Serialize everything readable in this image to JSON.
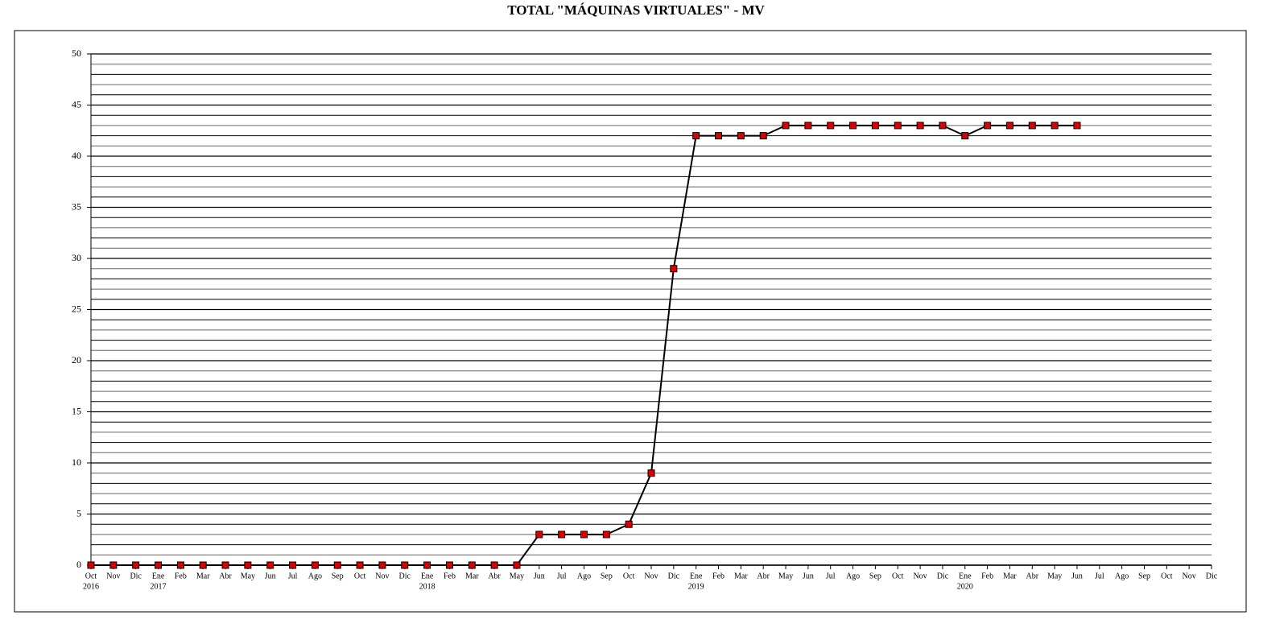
{
  "chart_data": {
    "type": "line",
    "title": "TOTAL \"MÁQUINAS VIRTUALES\" - MV",
    "categories": [
      "Oct",
      "Nov",
      "Dic",
      "Ene",
      "Feb",
      "Mar",
      "Abr",
      "May",
      "Jun",
      "Jul",
      "Ago",
      "Sep",
      "Oct",
      "Nov",
      "Dic",
      "Ene",
      "Feb",
      "Mar",
      "Abr",
      "May",
      "Jun",
      "Jul",
      "Ago",
      "Sep",
      "Oct",
      "Nov",
      "Dic",
      "Ene",
      "Feb",
      "Mar",
      "Abr",
      "May",
      "Jun",
      "Jul",
      "Ago",
      "Sep",
      "Oct",
      "Nov",
      "Dic",
      "Ene",
      "Feb",
      "Mar",
      "Abr",
      "May",
      "Jun",
      "Jul",
      "Ago",
      "Sep",
      "Oct",
      "Nov",
      "Dic"
    ],
    "category_years": [
      "2016",
      null,
      null,
      "2017",
      null,
      null,
      null,
      null,
      null,
      null,
      null,
      null,
      null,
      null,
      null,
      "2018",
      null,
      null,
      null,
      null,
      null,
      null,
      null,
      null,
      null,
      null,
      null,
      "2019",
      null,
      null,
      null,
      null,
      null,
      null,
      null,
      null,
      null,
      null,
      null,
      "2020",
      null,
      null,
      null,
      null,
      null,
      null,
      null,
      null,
      null,
      null,
      null
    ],
    "series": [
      {
        "color": "#dd0000",
        "line_color": "#000000",
        "values": [
          0,
          0,
          0,
          0,
          0,
          0,
          0,
          0,
          0,
          0,
          0,
          0,
          0,
          0,
          0,
          0,
          0,
          0,
          0,
          0,
          3,
          3,
          3,
          3,
          4,
          9,
          29,
          42,
          42,
          42,
          42,
          43,
          43,
          43,
          43,
          43,
          43,
          43,
          43,
          42,
          43,
          43,
          43,
          43,
          43,
          null,
          null,
          null,
          null,
          null,
          null
        ]
      }
    ],
    "ylim": [
      0,
      50
    ],
    "yticks": [
      0,
      5,
      10,
      15,
      20,
      25,
      30,
      35,
      40,
      45,
      50
    ],
    "grid": true,
    "minor_grid_step": 1
  }
}
